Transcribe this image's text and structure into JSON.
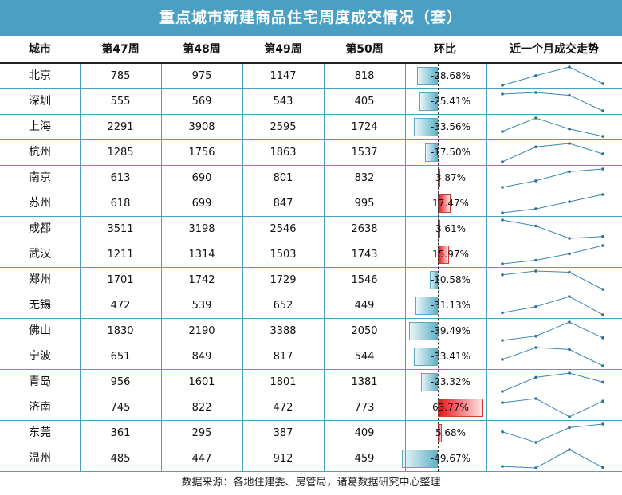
{
  "colors": {
    "header_bg": "#4a9fc2",
    "grid": "#4a9fc2",
    "negative_bar": "#62b2c8",
    "positive_bar": "#e8141a",
    "sparkline": "#3a88b0"
  },
  "chart_data": {
    "type": "table",
    "title": "重点城市新建商品住宅周度成交情况（套）",
    "columns": [
      "城市",
      "第47周",
      "第48周",
      "第49周",
      "第50周",
      "环比",
      "近一个月成交走势"
    ],
    "rows": [
      {
        "city": "北京",
        "values": [
          785,
          975,
          1147,
          818
        ],
        "change": "-28.68%",
        "change_value": -28.68
      },
      {
        "city": "深圳",
        "values": [
          555,
          569,
          543,
          405
        ],
        "change": "-25.41%",
        "change_value": -25.41
      },
      {
        "city": "上海",
        "values": [
          2291,
          3908,
          2595,
          1724
        ],
        "change": "-33.56%",
        "change_value": -33.56
      },
      {
        "city": "杭州",
        "values": [
          1285,
          1756,
          1863,
          1537
        ],
        "change": "-17.50%",
        "change_value": -17.5
      },
      {
        "city": "南京",
        "values": [
          613,
          690,
          801,
          832
        ],
        "change": "3.87%",
        "change_value": 3.87
      },
      {
        "city": "苏州",
        "values": [
          618,
          699,
          847,
          995
        ],
        "change": "17.47%",
        "change_value": 17.47
      },
      {
        "city": "成都",
        "values": [
          3511,
          3198,
          2546,
          2638
        ],
        "change": "3.61%",
        "change_value": 3.61
      },
      {
        "city": "武汉",
        "values": [
          1211,
          1314,
          1503,
          1743
        ],
        "change": "15.97%",
        "change_value": 15.97
      },
      {
        "city": "郑州",
        "values": [
          1701,
          1742,
          1729,
          1546
        ],
        "change": "-10.58%",
        "change_value": -10.58
      },
      {
        "city": "无锡",
        "values": [
          472,
          539,
          652,
          449
        ],
        "change": "-31.13%",
        "change_value": -31.13
      },
      {
        "city": "佛山",
        "values": [
          1830,
          2190,
          3388,
          2050
        ],
        "change": "-39.49%",
        "change_value": -39.49
      },
      {
        "city": "宁波",
        "values": [
          651,
          849,
          817,
          544
        ],
        "change": "-33.41%",
        "change_value": -33.41
      },
      {
        "city": "青岛",
        "values": [
          956,
          1601,
          1801,
          1381
        ],
        "change": "-23.32%",
        "change_value": -23.32
      },
      {
        "city": "济南",
        "values": [
          745,
          822,
          472,
          773
        ],
        "change": "63.77%",
        "change_value": 63.77
      },
      {
        "city": "东莞",
        "values": [
          361,
          295,
          387,
          409
        ],
        "change": "5.68%",
        "change_value": 5.68
      },
      {
        "city": "温州",
        "values": [
          485,
          447,
          912,
          459
        ],
        "change": "-49.67%",
        "change_value": -49.67
      }
    ],
    "footer": "数据来源：各地住建委、房管局，诸葛数据研究中心整理"
  }
}
